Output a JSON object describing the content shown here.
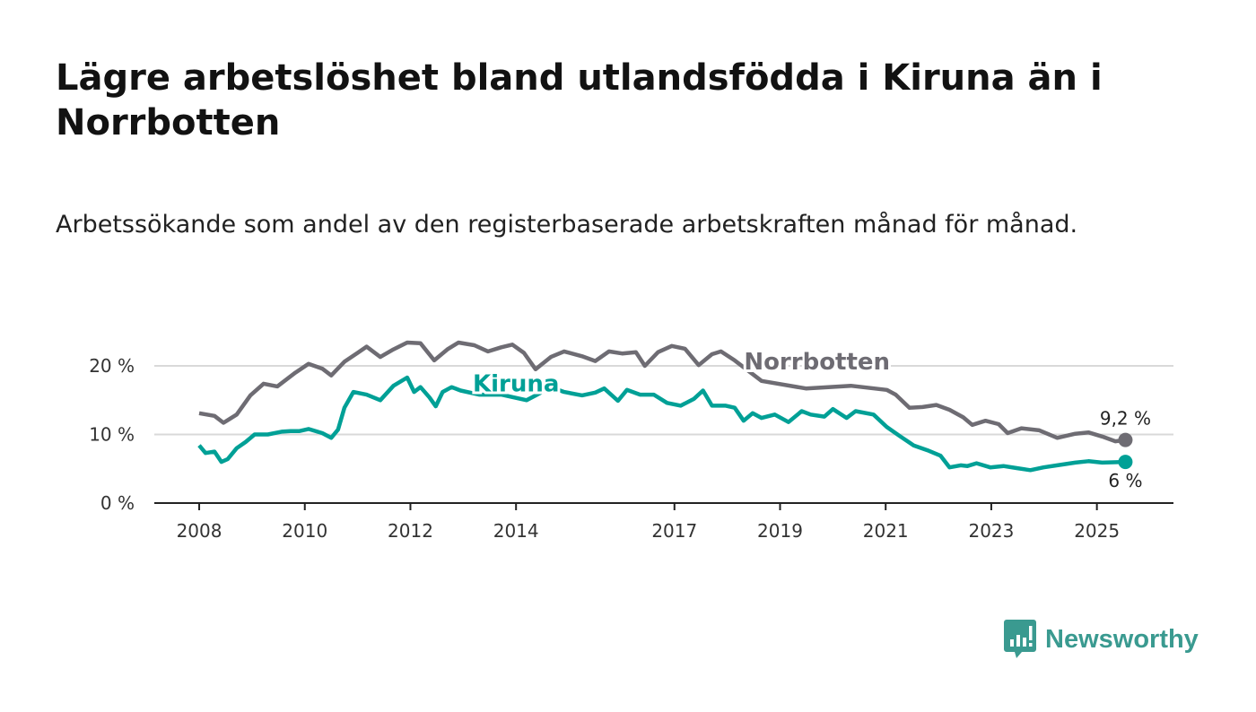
{
  "title": "Lägre arbetslöshet bland utlandsfödda i Kiruna än i Norrbotten",
  "subtitle": "Arbetssökande som andel av den registerbaserade arbetskraften månad för månad.",
  "brand": "Newsworthy",
  "colors": {
    "kiruna": "#00a096",
    "norrbotten": "#6e6c73",
    "brand": "#3a9a90"
  },
  "chart_data": {
    "type": "line",
    "title": "Lägre arbetslöshet bland utlandsfödda i Kiruna än i Norrbotten",
    "xlabel": "",
    "ylabel": "",
    "ylim": [
      0,
      23
    ],
    "xlim": [
      2007.15,
      2026.45
    ],
    "yticks": [
      {
        "v": 0,
        "label": "0 %"
      },
      {
        "v": 10,
        "label": "10 %"
      },
      {
        "v": 20,
        "label": "20 %"
      }
    ],
    "xticks": [
      {
        "v": 2008,
        "label": "2008"
      },
      {
        "v": 2010,
        "label": "2010"
      },
      {
        "v": 2012,
        "label": "2012"
      },
      {
        "v": 2014,
        "label": "2014"
      },
      {
        "v": 2017,
        "label": "2017"
      },
      {
        "v": 2019,
        "label": "2019"
      },
      {
        "v": 2021,
        "label": "2021"
      },
      {
        "v": 2023,
        "label": "2023"
      },
      {
        "v": 2025,
        "label": "2025"
      }
    ],
    "grid": true,
    "series": [
      {
        "name": "Norrbotten",
        "end_label": "9,2 %",
        "label_at": [
          2019.7,
          19.5
        ],
        "points": [
          [
            2008.0,
            13.1
          ],
          [
            2008.29,
            12.7
          ],
          [
            2008.46,
            11.7
          ],
          [
            2008.71,
            12.9
          ],
          [
            2008.97,
            15.7
          ],
          [
            2009.22,
            17.4
          ],
          [
            2009.48,
            17.0
          ],
          [
            2009.82,
            19.0
          ],
          [
            2010.07,
            20.3
          ],
          [
            2010.33,
            19.6
          ],
          [
            2010.5,
            18.6
          ],
          [
            2010.75,
            20.6
          ],
          [
            2011.0,
            21.9
          ],
          [
            2011.17,
            22.8
          ],
          [
            2011.43,
            21.3
          ],
          [
            2011.68,
            22.4
          ],
          [
            2011.94,
            23.4
          ],
          [
            2012.19,
            23.3
          ],
          [
            2012.45,
            20.8
          ],
          [
            2012.7,
            22.4
          ],
          [
            2012.91,
            23.4
          ],
          [
            2013.21,
            23.0
          ],
          [
            2013.47,
            22.1
          ],
          [
            2013.72,
            22.7
          ],
          [
            2013.93,
            23.1
          ],
          [
            2014.15,
            21.9
          ],
          [
            2014.37,
            19.5
          ],
          [
            2014.66,
            21.3
          ],
          [
            2014.91,
            22.1
          ],
          [
            2015.25,
            21.4
          ],
          [
            2015.5,
            20.7
          ],
          [
            2015.76,
            22.1
          ],
          [
            2016.01,
            21.8
          ],
          [
            2016.27,
            22.0
          ],
          [
            2016.44,
            20.0
          ],
          [
            2016.69,
            22.0
          ],
          [
            2016.95,
            22.9
          ],
          [
            2017.2,
            22.5
          ],
          [
            2017.46,
            20.1
          ],
          [
            2017.71,
            21.7
          ],
          [
            2017.88,
            22.1
          ],
          [
            2018.14,
            20.8
          ],
          [
            2018.65,
            17.8
          ],
          [
            2019.49,
            16.7
          ],
          [
            2020.34,
            17.1
          ],
          [
            2021.02,
            16.5
          ],
          [
            2021.19,
            15.8
          ],
          [
            2021.45,
            13.9
          ],
          [
            2021.7,
            14.0
          ],
          [
            2021.96,
            14.3
          ],
          [
            2022.21,
            13.6
          ],
          [
            2022.47,
            12.5
          ],
          [
            2022.64,
            11.4
          ],
          [
            2022.89,
            12.0
          ],
          [
            2023.14,
            11.5
          ],
          [
            2023.31,
            10.2
          ],
          [
            2023.57,
            10.9
          ],
          [
            2023.91,
            10.6
          ],
          [
            2024.25,
            9.5
          ],
          [
            2024.59,
            10.1
          ],
          [
            2024.84,
            10.3
          ],
          [
            2025.1,
            9.7
          ],
          [
            2025.35,
            9.0
          ],
          [
            2025.54,
            9.2
          ]
        ]
      },
      {
        "name": "Kiruna",
        "end_label": "6 %",
        "label_at": [
          2014.0,
          16.3
        ],
        "points": [
          [
            2008.0,
            8.4
          ],
          [
            2008.12,
            7.3
          ],
          [
            2008.29,
            7.5
          ],
          [
            2008.42,
            6.0
          ],
          [
            2008.54,
            6.4
          ],
          [
            2008.71,
            8.0
          ],
          [
            2008.88,
            8.9
          ],
          [
            2009.05,
            10.0
          ],
          [
            2009.3,
            10.0
          ],
          [
            2009.56,
            10.4
          ],
          [
            2009.73,
            10.5
          ],
          [
            2009.9,
            10.5
          ],
          [
            2010.07,
            10.8
          ],
          [
            2010.33,
            10.2
          ],
          [
            2010.5,
            9.5
          ],
          [
            2010.63,
            10.7
          ],
          [
            2010.75,
            13.9
          ],
          [
            2010.92,
            16.2
          ],
          [
            2011.17,
            15.8
          ],
          [
            2011.43,
            15.0
          ],
          [
            2011.68,
            17.1
          ],
          [
            2011.94,
            18.3
          ],
          [
            2012.07,
            16.2
          ],
          [
            2012.19,
            16.9
          ],
          [
            2012.36,
            15.4
          ],
          [
            2012.48,
            14.1
          ],
          [
            2012.61,
            16.2
          ],
          [
            2012.78,
            16.9
          ],
          [
            2012.95,
            16.4
          ],
          [
            2013.3,
            15.8
          ],
          [
            2013.72,
            15.8
          ],
          [
            2014.2,
            15.0
          ],
          [
            2014.4,
            15.8
          ],
          [
            2014.66,
            16.9
          ],
          [
            2014.91,
            16.2
          ],
          [
            2015.25,
            15.7
          ],
          [
            2015.5,
            16.1
          ],
          [
            2015.67,
            16.7
          ],
          [
            2015.93,
            14.9
          ],
          [
            2016.1,
            16.5
          ],
          [
            2016.35,
            15.8
          ],
          [
            2016.61,
            15.8
          ],
          [
            2016.86,
            14.6
          ],
          [
            2017.12,
            14.2
          ],
          [
            2017.37,
            15.2
          ],
          [
            2017.54,
            16.4
          ],
          [
            2017.71,
            14.2
          ],
          [
            2017.97,
            14.2
          ],
          [
            2018.14,
            13.9
          ],
          [
            2018.31,
            12.0
          ],
          [
            2018.48,
            13.1
          ],
          [
            2018.65,
            12.4
          ],
          [
            2018.9,
            12.9
          ],
          [
            2019.16,
            11.8
          ],
          [
            2019.41,
            13.4
          ],
          [
            2019.58,
            12.9
          ],
          [
            2019.84,
            12.6
          ],
          [
            2020.0,
            13.7
          ],
          [
            2020.26,
            12.4
          ],
          [
            2020.43,
            13.4
          ],
          [
            2020.77,
            12.9
          ],
          [
            2021.02,
            11.1
          ],
          [
            2021.28,
            9.7
          ],
          [
            2021.53,
            8.4
          ],
          [
            2021.79,
            7.7
          ],
          [
            2022.04,
            6.9
          ],
          [
            2022.21,
            5.2
          ],
          [
            2022.42,
            5.5
          ],
          [
            2022.55,
            5.4
          ],
          [
            2022.72,
            5.8
          ],
          [
            2022.98,
            5.2
          ],
          [
            2023.23,
            5.4
          ],
          [
            2023.48,
            5.1
          ],
          [
            2023.74,
            4.8
          ],
          [
            2023.99,
            5.2
          ],
          [
            2024.25,
            5.5
          ],
          [
            2024.59,
            5.9
          ],
          [
            2024.84,
            6.1
          ],
          [
            2025.1,
            5.9
          ],
          [
            2025.54,
            6.0
          ]
        ]
      }
    ]
  }
}
